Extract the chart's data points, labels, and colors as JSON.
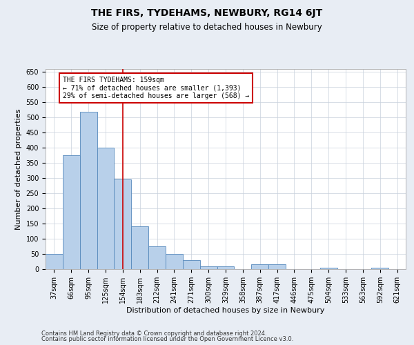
{
  "title": "THE FIRS, TYDEHAMS, NEWBURY, RG14 6JT",
  "subtitle": "Size of property relative to detached houses in Newbury",
  "xlabel": "Distribution of detached houses by size in Newbury",
  "ylabel": "Number of detached properties",
  "categories": [
    "37sqm",
    "66sqm",
    "95sqm",
    "125sqm",
    "154sqm",
    "183sqm",
    "212sqm",
    "241sqm",
    "271sqm",
    "300sqm",
    "329sqm",
    "358sqm",
    "387sqm",
    "417sqm",
    "446sqm",
    "475sqm",
    "504sqm",
    "533sqm",
    "563sqm",
    "592sqm",
    "621sqm"
  ],
  "values": [
    50,
    375,
    520,
    400,
    295,
    140,
    75,
    50,
    30,
    10,
    10,
    0,
    15,
    15,
    0,
    0,
    5,
    0,
    0,
    5,
    0
  ],
  "bar_color": "#b8d0ea",
  "bar_edge_color": "#5588bb",
  "vline_x": 4,
  "vline_color": "#cc0000",
  "annotation_title": "THE FIRS TYDEHAMS: 159sqm",
  "annotation_line1": "← 71% of detached houses are smaller (1,393)",
  "annotation_line2": "29% of semi-detached houses are larger (568) →",
  "annotation_box_color": "#cc0000",
  "ylim": [
    0,
    660
  ],
  "yticks": [
    0,
    50,
    100,
    150,
    200,
    250,
    300,
    350,
    400,
    450,
    500,
    550,
    600,
    650
  ],
  "footer1": "Contains HM Land Registry data © Crown copyright and database right 2024.",
  "footer2": "Contains public sector information licensed under the Open Government Licence v3.0.",
  "bg_color": "#e8edf4",
  "plot_bg_color": "#ffffff",
  "grid_color": "#c8d0dc",
  "title_fontsize": 10,
  "subtitle_fontsize": 8.5,
  "ylabel_fontsize": 8,
  "xlabel_fontsize": 8,
  "tick_fontsize": 7,
  "footer_fontsize": 6
}
